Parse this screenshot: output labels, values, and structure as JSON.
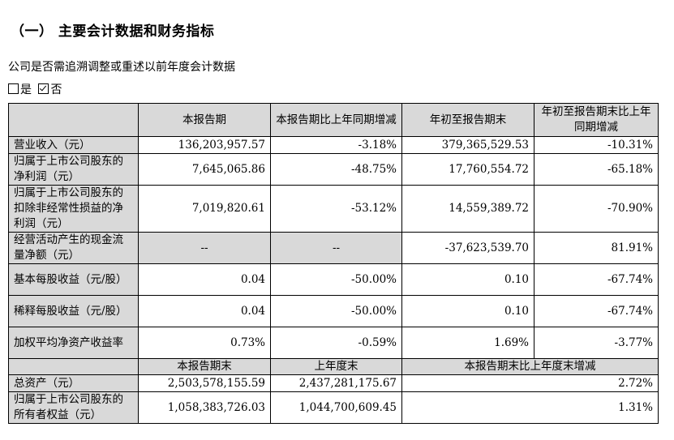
{
  "heading": "（一） 主要会计数据和财务指标",
  "question": "公司是否需追溯调整或重述以前年度会计数据",
  "options": [
    {
      "label": "是",
      "checked": false
    },
    {
      "label": "否",
      "checked": true
    }
  ],
  "table1": {
    "headers": [
      "本报告期",
      "本报告期比上年同期增减",
      "年初至报告期末",
      "年初至报告期末比上年同期增减"
    ],
    "rows": [
      {
        "label": "营业收入（元）",
        "values": [
          "136,203,957.57",
          "-3.18%",
          "379,365,529.53",
          "-10.31%"
        ]
      },
      {
        "label": "归属于上市公司股东的净利润（元）",
        "values": [
          "7,645,065.86",
          "-48.75%",
          "17,760,554.72",
          "-65.18%"
        ]
      },
      {
        "label": "归属于上市公司股东的扣除非经常性损益的净利润（元）",
        "values": [
          "7,019,820.61",
          "-53.12%",
          "14,559,389.72",
          "-70.90%"
        ]
      },
      {
        "label": "经营活动产生的现金流量净额（元）",
        "values": [
          "--",
          "--",
          "-37,623,539.70",
          "81.91%"
        ]
      },
      {
        "label": "基本每股收益（元/股）",
        "values": [
          "0.04",
          "-50.00%",
          "0.10",
          "-67.74%"
        ]
      },
      {
        "label": "稀释每股收益（元/股）",
        "values": [
          "0.04",
          "-50.00%",
          "0.10",
          "-67.74%"
        ]
      },
      {
        "label": "加权平均净资产收益率",
        "values": [
          "0.73%",
          "-0.59%",
          "1.69%",
          "-3.77%"
        ]
      }
    ]
  },
  "table2": {
    "headers": [
      "本报告期末",
      "上年度末",
      "本报告期末比上年度末增减"
    ],
    "rows": [
      {
        "label": "总资产（元）",
        "values": [
          "2,503,578,155.59",
          "2,437,281,175.67",
          "2.72%"
        ]
      },
      {
        "label": "归属于上市公司股东的所有者权益（元）",
        "values": [
          "1,058,383,726.03",
          "1,044,700,609.45",
          "1.31%"
        ]
      }
    ]
  }
}
